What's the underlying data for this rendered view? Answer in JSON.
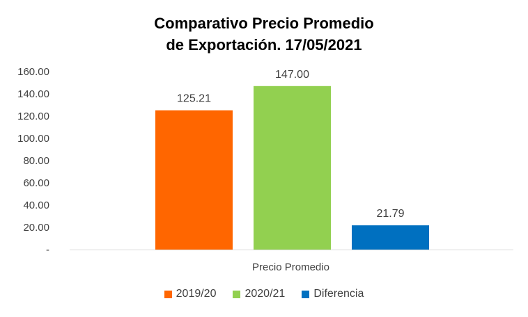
{
  "chart_data": {
    "type": "bar",
    "title_lines": [
      "Comparativo Precio Promedio",
      "de Exportación. 17/05/2021"
    ],
    "categories": [
      "Precio Promedio"
    ],
    "series": [
      {
        "name": "2019/20",
        "values": [
          125.21
        ],
        "label": "125.21",
        "color": "#FF6600"
      },
      {
        "name": "2020/21",
        "values": [
          147.0
        ],
        "label": "147.00",
        "color": "#92D050"
      },
      {
        "name": "Diferencia",
        "values": [
          21.79
        ],
        "label": "21.79",
        "color": "#0070C0"
      }
    ],
    "ylim": [
      0,
      160
    ],
    "y_ticks": [
      0,
      20,
      40,
      60,
      80,
      100,
      120,
      140,
      160
    ],
    "y_tick_labels": [
      "-",
      "20.00",
      "40.00",
      "60.00",
      "80.00",
      "100.00",
      "120.00",
      "140.00",
      "160.00"
    ],
    "grid": false,
    "legend_position": "bottom"
  }
}
